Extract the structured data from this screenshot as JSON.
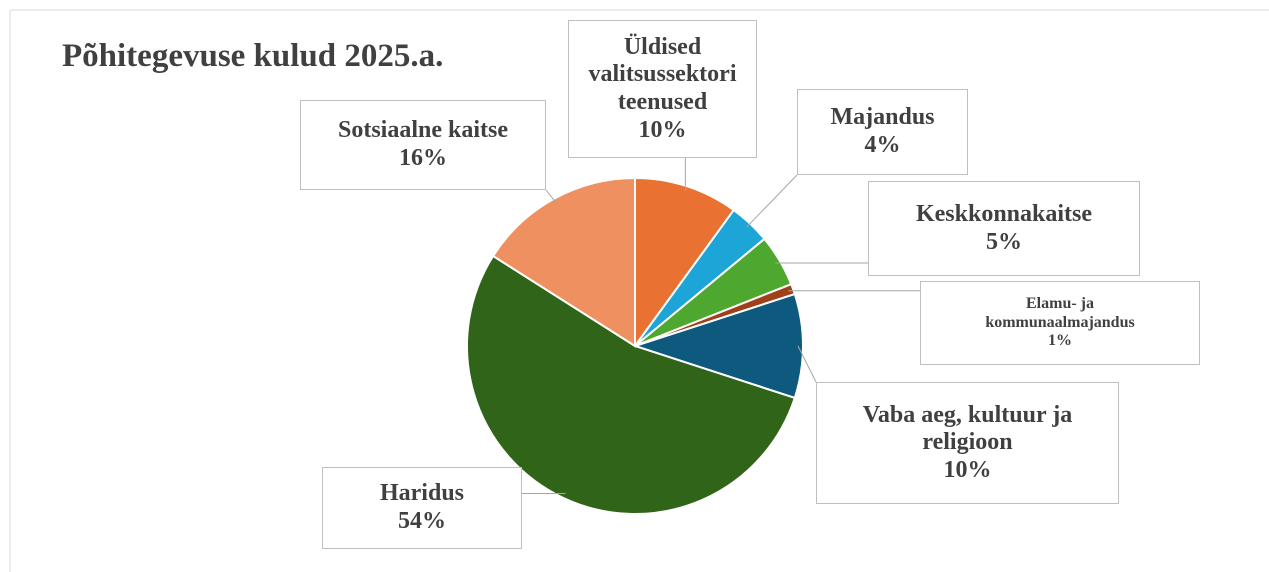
{
  "chart_data": {
    "type": "pie",
    "title": "Põhitegevuse kulud 2025.a.",
    "categories": [
      "Üldised valitsussektori teenused",
      "Majandus",
      "Keskkonnakaitse",
      "Elamu- ja kommunaalmajandus",
      "Vaba aeg, kultuur ja religioon",
      "Haridus",
      "Sotsiaalne kaitse"
    ],
    "values": [
      10,
      4,
      5,
      1,
      10,
      54,
      16
    ],
    "value_labels": [
      "10%",
      "4%",
      "5%",
      "1%",
      "10%",
      "54%",
      "16%"
    ],
    "colors": [
      "#e97132",
      "#1ea5d8",
      "#4ea72e",
      "#a0401a",
      "#0e5a7e",
      "#306419",
      "#ee9060"
    ]
  }
}
